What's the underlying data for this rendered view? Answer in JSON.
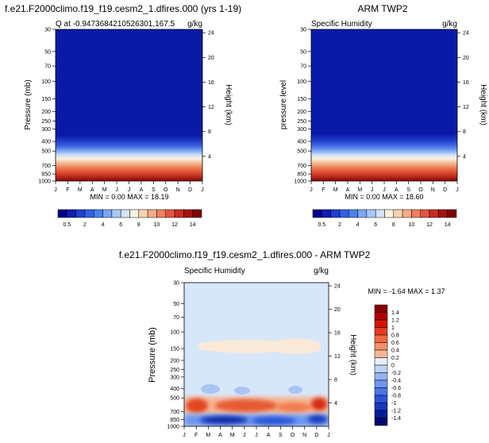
{
  "chart_data": [
    {
      "type": "heatmap",
      "title": "f.e21.F2000climo.f19_f19.cesm2_1.dfires.000 (yrs 1-19)",
      "subtitle_left": "Q at -0.9473684210526301,167.5",
      "subtitle_right": "g/kg",
      "xlabel": "",
      "ylabel": "Pressure (mb)",
      "y2label": "Height (km)",
      "x_ticks": [
        "J",
        "F",
        "M",
        "A",
        "M",
        "J",
        "J",
        "A",
        "S",
        "O",
        "N",
        "D",
        "J"
      ],
      "y_ticks": [
        "30",
        "50",
        "70",
        "100",
        "150",
        "200",
        "250",
        "300",
        "400",
        "500",
        "700",
        "850",
        "1000"
      ],
      "y2_ticks": [
        "24",
        "20",
        "16",
        "12",
        "8",
        "4"
      ],
      "min_max": "MIN =   0.00 MAX =  18.19",
      "colorbar_labels": [
        "0.5",
        "2",
        "4",
        "6",
        "8",
        "10",
        "12",
        "14"
      ],
      "ylim": [
        30,
        1000
      ],
      "ylog": true,
      "surface_max": 18.19,
      "moist_top_mb": 300
    },
    {
      "type": "heatmap",
      "title": "ARM TWP2",
      "subtitle_left": "Specific Humidity",
      "subtitle_right": "g/kg",
      "xlabel": "",
      "ylabel": "pressure level",
      "y2label": "Height (km)",
      "x_ticks": [
        "J",
        "F",
        "M",
        "A",
        "M",
        "J",
        "J",
        "A",
        "S",
        "O",
        "N",
        "D",
        "J"
      ],
      "y_ticks": [
        "30",
        "50",
        "70",
        "100",
        "150",
        "200",
        "250",
        "300",
        "400",
        "500",
        "700",
        "850",
        "1000"
      ],
      "y2_ticks": [
        "24",
        "20",
        "16",
        "12",
        "8",
        "4"
      ],
      "min_max": "MIN =   0.00 MAX =  18.60",
      "colorbar_labels": [
        "0.5",
        "2",
        "4",
        "6",
        "8",
        "10",
        "12",
        "14"
      ],
      "ylim": [
        30,
        1000
      ],
      "ylog": true,
      "surface_max": 18.6,
      "moist_top_mb": 300
    },
    {
      "type": "heatmap",
      "title": "f.e21.F2000climo.f19_f19.cesm2_1.dfires.000 - ARM TWP2",
      "subtitle_left": "Specific Humidity",
      "subtitle_right": "g/kg",
      "xlabel": "",
      "ylabel": "Pressure (mb)",
      "y2label": "Height (km)",
      "x_ticks": [
        "J",
        "F",
        "M",
        "A",
        "M",
        "J",
        "J",
        "A",
        "S",
        "O",
        "N",
        "D",
        "J"
      ],
      "y_ticks": [
        "30",
        "50",
        "70",
        "100",
        "150",
        "200",
        "250",
        "300",
        "400",
        "500",
        "700",
        "850",
        "1000"
      ],
      "y2_ticks": [
        "24",
        "20",
        "16",
        "12",
        "8",
        "4"
      ],
      "min_max": "MIN =  -1.64 MAX =   1.37",
      "colorbar_labels": [
        "1.4",
        "1.2",
        "1",
        "0.8",
        "0.6",
        "0.4",
        "0.2",
        "0",
        "-0.2",
        "-0.4",
        "-0.6",
        "-0.8",
        "-1",
        "-1.2",
        "-1.4"
      ],
      "ylim": [
        30,
        1000
      ],
      "ylog": true,
      "min": -1.64,
      "max": 1.37
    }
  ],
  "colors": {
    "seq": [
      "#00008c",
      "#0f1fb4",
      "#1f3fd0",
      "#2f60e6",
      "#4a82ee",
      "#7aa6f4",
      "#a8c8f8",
      "#d2e4fb",
      "#fbf2e0",
      "#fad2b0",
      "#f6ac86",
      "#ef8060",
      "#e35440",
      "#cc2a20",
      "#a81010",
      "#800000"
    ],
    "div": [
      "#870000",
      "#b20000",
      "#d41400",
      "#e63b1e",
      "#ef6a42",
      "#f48f67",
      "#f7b593",
      "#e6eefc",
      "#bcd2fa",
      "#94b4f5",
      "#6f95ee",
      "#4a75e6",
      "#2c53d6",
      "#1537bc",
      "#041d99",
      "#000a6e"
    ],
    "diff_background": "#d6e7fa"
  }
}
